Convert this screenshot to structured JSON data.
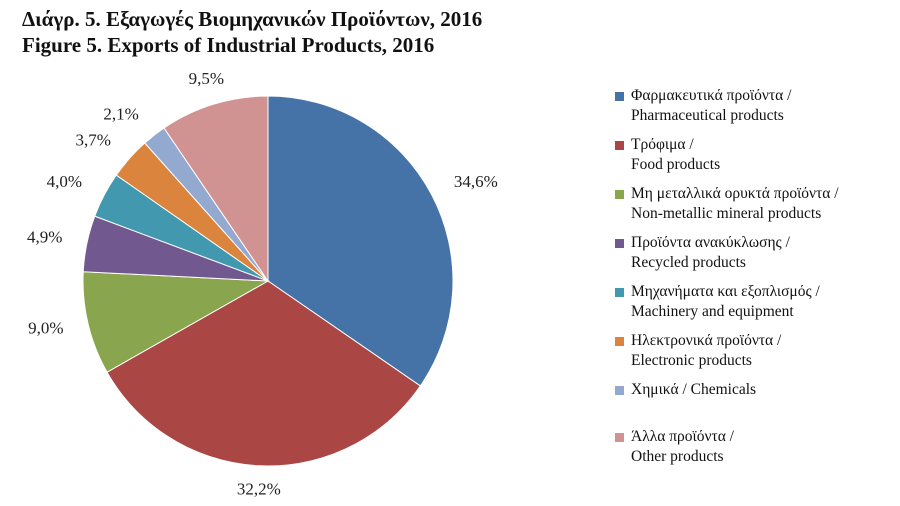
{
  "chart_data": {
    "type": "pie",
    "title": "Διάγρ. 5. Εξαγωγές Βιομηχανικών Προϊόντων, 2016",
    "subtitle": "Figure 5. Exports of Industrial Products, 2016",
    "legend_position": "right",
    "slices": [
      {
        "label_el": "Φαρμακευτικά προϊόντα /",
        "label_en": "Pharmaceutical products",
        "value": 34.6,
        "value_label": "34,6%",
        "color": "#4572A7"
      },
      {
        "label_el": "Τρόφιμα /",
        "label_en": "Food products",
        "value": 32.2,
        "value_label": "32,2%",
        "color": "#AA4643"
      },
      {
        "label_el": "Μη μεταλλικά ορυκτά προϊόντα /",
        "label_en": "Non-metallic mineral products",
        "value": 9.0,
        "value_label": "9,0%",
        "color": "#89A54E"
      },
      {
        "label_el": "Προϊόντα ανακύκλωσης /",
        "label_en": "Recycled products",
        "value": 4.9,
        "value_label": "4,9%",
        "color": "#71588F"
      },
      {
        "label_el": "Μηχανήματα και εξοπλισμός /",
        "label_en": "Machinery and equipment",
        "value": 4.0,
        "value_label": "4,0%",
        "color": "#4198AF"
      },
      {
        "label_el": "Ηλεκτρονικά προϊόντα /",
        "label_en": "Electronic products",
        "value": 3.7,
        "value_label": "3,7%",
        "color": "#DB843D"
      },
      {
        "label_el": "Χημικά / Chemicals",
        "label_en": "",
        "value": 2.1,
        "value_label": "2,1%",
        "color": "#93A9CF"
      },
      {
        "label_el": "Άλλα προϊόντα /",
        "label_en": "Other products",
        "value": 9.5,
        "value_label": "9,5%",
        "color": "#D19392"
      }
    ]
  }
}
